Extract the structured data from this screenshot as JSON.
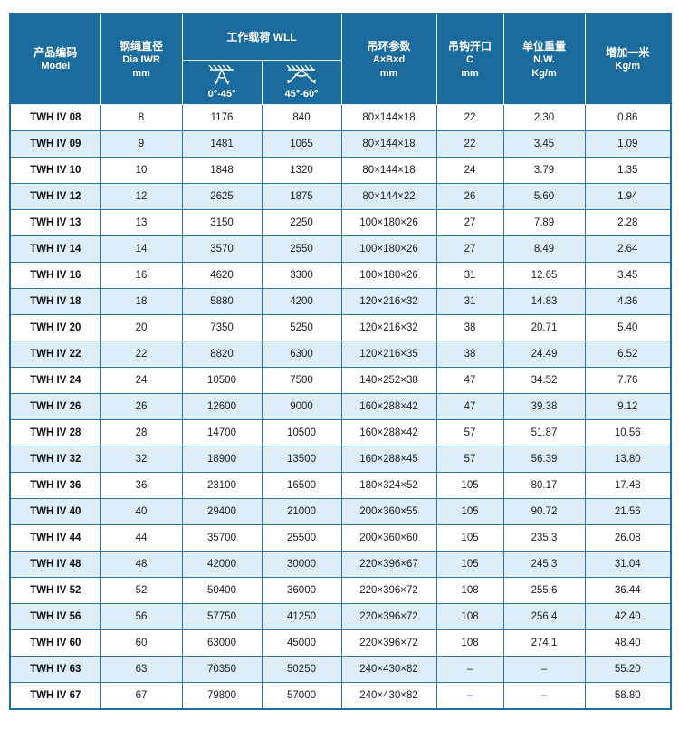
{
  "table": {
    "header": {
      "model": {
        "line1": "产品编码",
        "line2": "Model"
      },
      "diameter": {
        "line1": "钢绳直径",
        "line2": "Dia  IWR",
        "line3": "mm"
      },
      "wll": {
        "title": "工作载荷 WLL",
        "sub1": "0°-45°",
        "sub2": "45°-60°"
      },
      "ring": {
        "line1": "吊环参数",
        "line2": "A×B×d",
        "line3": "mm"
      },
      "hook": {
        "line1": "吊钩开口",
        "line2": "C",
        "line3": "mm"
      },
      "weight": {
        "line1": "单位重量",
        "line2": "N.W.",
        "line3": "Kg/m"
      },
      "extra": {
        "line1": "增加一米",
        "line2": "Kg/m"
      }
    },
    "rows": [
      [
        "TWH IV 08",
        "8",
        "1176",
        "840",
        "80×144×18",
        "22",
        "2.30",
        "0.86"
      ],
      [
        "TWH IV 09",
        "9",
        "1481",
        "1065",
        "80×144×18",
        "22",
        "3.45",
        "1.09"
      ],
      [
        "TWH IV 10",
        "10",
        "1848",
        "1320",
        "80×144×18",
        "24",
        "3.79",
        "1.35"
      ],
      [
        "TWH IV 12",
        "12",
        "2625",
        "1875",
        "80×144×22",
        "26",
        "5.60",
        "1.94"
      ],
      [
        "TWH IV 13",
        "13",
        "3150",
        "2250",
        "100×180×26",
        "27",
        "7.89",
        "2.28"
      ],
      [
        "TWH IV 14",
        "14",
        "3570",
        "2550",
        "100×180×26",
        "27",
        "8.49",
        "2.64"
      ],
      [
        "TWH IV 16",
        "16",
        "4620",
        "3300",
        "100×180×26",
        "31",
        "12.65",
        "3.45"
      ],
      [
        "TWH IV 18",
        "18",
        "5880",
        "4200",
        "120×216×32",
        "31",
        "14.83",
        "4.36"
      ],
      [
        "TWH IV 20",
        "20",
        "7350",
        "5250",
        "120×216×32",
        "38",
        "20.71",
        "5.40"
      ],
      [
        "TWH IV 22",
        "22",
        "8820",
        "6300",
        "120×216×35",
        "38",
        "24.49",
        "6.52"
      ],
      [
        "TWH IV 24",
        "24",
        "10500",
        "7500",
        "140×252×38",
        "47",
        "34.52",
        "7.76"
      ],
      [
        "TWH IV 26",
        "26",
        "12600",
        "9000",
        "160×288×42",
        "47",
        "39.38",
        "9.12"
      ],
      [
        "TWH IV 28",
        "28",
        "14700",
        "10500",
        "160×288×42",
        "57",
        "51.87",
        "10.56"
      ],
      [
        "TWH IV 32",
        "32",
        "18900",
        "13500",
        "160×288×45",
        "57",
        "56.39",
        "13.80"
      ],
      [
        "TWH IV 36",
        "36",
        "23100",
        "16500",
        "180×324×52",
        "105",
        "80.17",
        "17.48"
      ],
      [
        "TWH IV 40",
        "40",
        "29400",
        "21000",
        "200×360×55",
        "105",
        "90.72",
        "21.56"
      ],
      [
        "TWH IV 44",
        "44",
        "35700",
        "25500",
        "200×360×60",
        "105",
        "235.3",
        "26.08"
      ],
      [
        "TWH IV 48",
        "48",
        "42000",
        "30000",
        "220×396×67",
        "105",
        "245.3",
        "31.04"
      ],
      [
        "TWH IV 52",
        "52",
        "50400",
        "36000",
        "220×396×72",
        "108",
        "255.6",
        "36.44"
      ],
      [
        "TWH IV 56",
        "56",
        "57750",
        "41250",
        "220×396×72",
        "108",
        "256.4",
        "42.40"
      ],
      [
        "TWH IV 60",
        "60",
        "63000",
        "45000",
        "220×396×72",
        "108",
        "274.1",
        "48.40"
      ],
      [
        "TWH IV 63",
        "63",
        "70350",
        "50250",
        "240×430×82",
        "–",
        "–",
        "55.20"
      ],
      [
        "TWH IV 67",
        "67",
        "79800",
        "57000",
        "240×430×82",
        "–",
        "–",
        "58.80"
      ]
    ]
  },
  "colors": {
    "header_bg": "#1b6c9c",
    "border_blue": "#2a76ad",
    "row_alt_bg": "#ddeef9",
    "header_text": "#ffffff"
  }
}
